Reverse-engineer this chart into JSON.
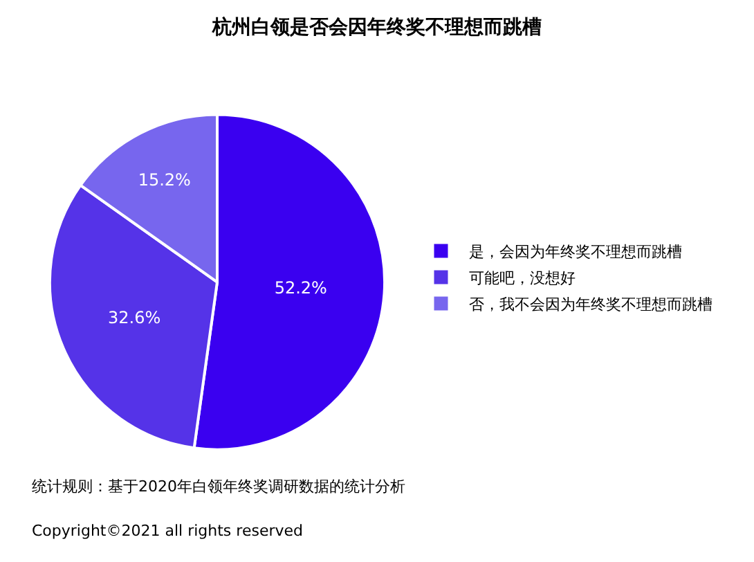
{
  "chart_data": {
    "type": "pie",
    "title": "杭州白领是否会因年终奖不理想而跳槽",
    "categories": [
      "是，会因为年终奖不理想而跳槽",
      "可能吧，没想好",
      "否，我不会因为年终奖不理想而跳槽"
    ],
    "values": [
      52.2,
      32.6,
      15.2
    ],
    "colors": [
      "#3a00f0",
      "#5533e8",
      "#7766ee"
    ],
    "value_labels": [
      "52.2%",
      "32.6%",
      "15.2%"
    ],
    "legend": "right",
    "annotations": [
      "统计规则：基于2020年白领年终奖调研数据的统计分析",
      "Copyright©2021 all rights reserved"
    ]
  }
}
